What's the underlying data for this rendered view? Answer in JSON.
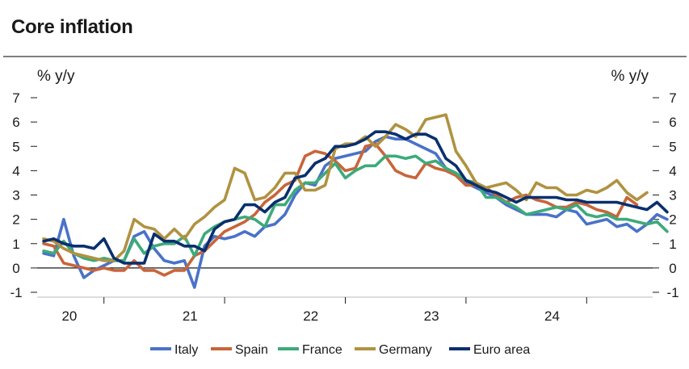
{
  "header": {
    "title": "Core inflation"
  },
  "chart_data": {
    "type": "line",
    "title": "Core inflation",
    "ylabel_left": "% y/y",
    "ylabel_right": "% y/y",
    "ylim": [
      -1,
      7
    ],
    "yticks": [
      -1,
      0,
      1,
      2,
      3,
      4,
      5,
      6,
      7
    ],
    "ytick_labels": [
      "-1",
      "0",
      "1",
      "2",
      "3",
      "4",
      "5",
      "6",
      "7"
    ],
    "x_start": "2020-01",
    "x_end": "2024-11",
    "year_labels": [
      "20",
      "21",
      "22",
      "23",
      "24"
    ],
    "year_label_months": [
      2,
      14,
      26,
      38,
      50
    ],
    "year_tick_months": [
      6,
      18,
      30,
      42,
      54
    ],
    "legend_position": "bottom",
    "grid": false,
    "series": [
      {
        "name": "Italy",
        "color": "#4a72c8",
        "values": [
          0.6,
          0.5,
          2.0,
          0.5,
          -0.4,
          -0.1,
          0.1,
          0.3,
          0.3,
          1.3,
          1.5,
          0.8,
          0.3,
          0.2,
          0.3,
          -0.8,
          0.9,
          1.3,
          1.2,
          1.3,
          1.5,
          1.3,
          1.7,
          1.8,
          2.2,
          3.0,
          3.5,
          3.4,
          4.2,
          4.5,
          4.6,
          4.7,
          4.8,
          5.2,
          5.4,
          5.3,
          5.3,
          5.1,
          4.9,
          4.7,
          4.1,
          3.9,
          3.5,
          3.3,
          3.1,
          2.9,
          2.6,
          2.4,
          2.2,
          2.2,
          2.2,
          2.1,
          2.4,
          2.3,
          1.8,
          1.9,
          2.0,
          1.7,
          1.8,
          1.5,
          1.8,
          2.2,
          2.0
        ]
      },
      {
        "name": "Spain",
        "color": "#c8653a",
        "values": [
          1.0,
          0.9,
          0.2,
          0.1,
          0.0,
          -0.1,
          0.0,
          -0.1,
          -0.1,
          0.3,
          -0.1,
          -0.1,
          -0.3,
          -0.1,
          -0.1,
          0.5,
          0.7,
          1.1,
          1.5,
          1.7,
          1.9,
          2.2,
          2.7,
          3.0,
          3.4,
          3.6,
          4.6,
          4.8,
          4.7,
          4.4,
          4.0,
          4.1,
          5.0,
          5.1,
          4.6,
          4.0,
          3.8,
          3.7,
          4.3,
          4.1,
          4.0,
          3.8,
          3.4,
          3.4,
          3.3,
          3.0,
          2.7,
          2.9,
          3.0,
          2.8,
          2.7,
          2.5,
          2.5,
          2.7,
          2.6,
          2.4,
          2.3,
          2.1,
          2.9,
          2.6
        ]
      },
      {
        "name": "France",
        "color": "#3daa7a",
        "values": [
          0.7,
          0.6,
          1.1,
          0.6,
          0.4,
          0.3,
          0.4,
          0.3,
          0.3,
          1.2,
          0.6,
          0.9,
          1.0,
          1.0,
          1.3,
          0.5,
          1.4,
          1.7,
          1.9,
          2.0,
          2.1,
          2.0,
          1.7,
          2.6,
          2.6,
          3.2,
          3.5,
          3.5,
          3.9,
          4.3,
          3.7,
          4.0,
          4.2,
          4.2,
          4.6,
          4.6,
          4.5,
          4.6,
          4.3,
          4.4,
          4.1,
          3.9,
          3.6,
          3.5,
          2.9,
          2.9,
          2.7,
          2.5,
          2.2,
          2.3,
          2.4,
          2.5,
          2.4,
          2.6,
          2.2,
          2.1,
          2.2,
          2.0,
          2.0,
          1.9,
          1.8,
          1.9,
          1.5
        ]
      },
      {
        "name": "Germany",
        "color": "#b09240",
        "values": [
          1.2,
          1.1,
          0.8,
          0.6,
          0.5,
          0.4,
          0.3,
          0.3,
          0.7,
          2.0,
          1.7,
          1.6,
          1.2,
          1.6,
          1.2,
          1.8,
          2.1,
          2.5,
          2.8,
          4.1,
          3.9,
          2.8,
          2.9,
          3.3,
          3.9,
          3.9,
          3.2,
          3.2,
          3.4,
          4.9,
          5.1,
          5.1,
          5.4,
          5.0,
          5.4,
          5.9,
          5.7,
          5.4,
          6.1,
          6.2,
          6.3,
          4.8,
          4.2,
          3.5,
          3.3,
          3.4,
          3.5,
          3.2,
          2.8,
          3.5,
          3.3,
          3.3,
          3.0,
          3.0,
          3.2,
          3.1,
          3.3,
          3.6,
          3.1,
          2.8,
          3.1
        ]
      },
      {
        "name": "Euro area",
        "color": "#0a2f6e",
        "values": [
          1.1,
          1.2,
          1.0,
          0.9,
          0.9,
          0.8,
          1.2,
          0.4,
          0.2,
          0.2,
          0.2,
          1.4,
          1.1,
          1.1,
          0.9,
          0.9,
          0.7,
          1.6,
          1.9,
          2.0,
          2.6,
          2.6,
          2.3,
          2.7,
          2.9,
          3.7,
          3.8,
          4.3,
          4.5,
          5.0,
          5.0,
          5.1,
          5.3,
          5.6,
          5.6,
          5.5,
          5.3,
          5.5,
          5.5,
          5.3,
          4.5,
          4.2,
          3.6,
          3.4,
          3.2,
          3.1,
          2.9,
          2.7,
          2.9,
          2.9,
          2.9,
          2.9,
          2.8,
          2.8,
          2.7,
          2.7,
          2.7,
          2.7,
          2.6,
          2.5,
          2.4,
          2.7,
          2.3
        ]
      }
    ]
  }
}
